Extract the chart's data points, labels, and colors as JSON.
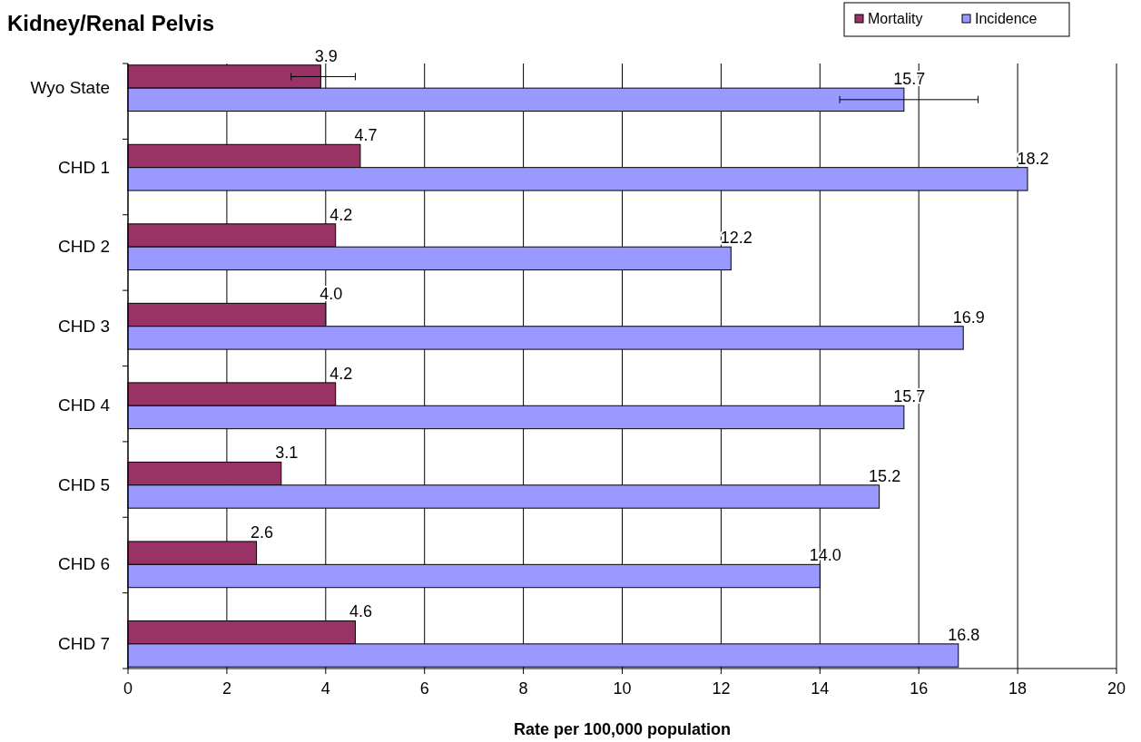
{
  "chart_data": {
    "type": "bar",
    "orientation": "horizontal",
    "title": "Kidney/Renal Pelvis",
    "xlabel": "Rate per 100,000 population",
    "categories": [
      "Wyo State",
      "CHD 1",
      "CHD 2",
      "CHD 3",
      "CHD 4",
      "CHD 5",
      "CHD 6",
      "CHD 7"
    ],
    "series": [
      {
        "name": "Mortality",
        "color": "#993366",
        "values": [
          3.9,
          4.7,
          4.2,
          4.0,
          4.2,
          3.1,
          2.6,
          4.6
        ],
        "value_labels": [
          "3.9",
          "4.7",
          "4.2",
          "4.0",
          "4.2",
          "3.1",
          "2.6",
          "4.6"
        ],
        "errors": [
          [
            3.3,
            4.6
          ],
          null,
          null,
          null,
          null,
          null,
          null,
          null
        ]
      },
      {
        "name": "Incidence",
        "color": "#9999ff",
        "values": [
          15.7,
          18.2,
          12.2,
          16.9,
          15.7,
          15.2,
          14.0,
          16.8
        ],
        "value_labels": [
          "15.7",
          "18.2",
          "12.2",
          "16.9",
          "15.7",
          "15.2",
          "14.0",
          "16.8"
        ],
        "errors": [
          [
            14.4,
            17.2
          ],
          null,
          null,
          null,
          null,
          null,
          null,
          null
        ]
      }
    ],
    "xlim": [
      0,
      20
    ],
    "xticks": [
      0,
      2,
      4,
      6,
      8,
      10,
      12,
      14,
      16,
      18,
      20
    ],
    "grid": "x",
    "legend": "top right"
  }
}
